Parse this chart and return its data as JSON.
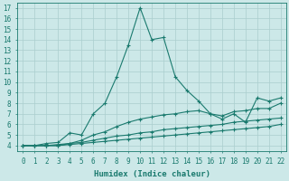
{
  "xlabel": "Humidex (Indice chaleur)",
  "ylabel": "",
  "bg_color": "#cce8e8",
  "line_color": "#1a7a6e",
  "grid_color": "#aacece",
  "ylim": [
    3.5,
    17.5
  ],
  "xlim": [
    -0.5,
    22.5
  ],
  "yticks": [
    4,
    5,
    6,
    7,
    8,
    9,
    10,
    11,
    12,
    13,
    14,
    15,
    16,
    17
  ],
  "xticks": [
    0,
    1,
    2,
    3,
    4,
    5,
    6,
    7,
    8,
    9,
    10,
    11,
    12,
    13,
    14,
    15,
    16,
    17,
    18,
    19,
    20,
    21,
    22
  ],
  "series": [
    {
      "x": [
        0,
        1,
        2,
        3,
        4,
        5,
        6,
        7,
        8,
        9,
        10,
        11,
        12,
        13,
        14,
        15,
        16,
        17,
        18,
        19,
        20,
        21,
        22
      ],
      "y": [
        4,
        4,
        4.2,
        4.3,
        5.2,
        5.0,
        7.0,
        8.0,
        10.5,
        13.5,
        17.0,
        14.0,
        14.2,
        10.5,
        9.2,
        8.2,
        7.0,
        6.5,
        7.0,
        6.2,
        8.5,
        8.2,
        8.5
      ]
    },
    {
      "x": [
        0,
        1,
        2,
        3,
        4,
        5,
        6,
        7,
        8,
        9,
        10,
        11,
        12,
        13,
        14,
        15,
        16,
        17,
        18,
        19,
        20,
        21,
        22
      ],
      "y": [
        4,
        4,
        4.0,
        4.1,
        4.2,
        4.5,
        5.0,
        5.3,
        5.8,
        6.2,
        6.5,
        6.7,
        6.9,
        7.0,
        7.2,
        7.3,
        7.0,
        6.8,
        7.2,
        7.3,
        7.5,
        7.5,
        8.0
      ]
    },
    {
      "x": [
        0,
        1,
        2,
        3,
        4,
        5,
        6,
        7,
        8,
        9,
        10,
        11,
        12,
        13,
        14,
        15,
        16,
        17,
        18,
        19,
        20,
        21,
        22
      ],
      "y": [
        4,
        4,
        4.0,
        4.0,
        4.2,
        4.3,
        4.5,
        4.7,
        4.9,
        5.0,
        5.2,
        5.3,
        5.5,
        5.6,
        5.7,
        5.8,
        5.9,
        6.0,
        6.2,
        6.3,
        6.4,
        6.5,
        6.6
      ]
    },
    {
      "x": [
        0,
        1,
        2,
        3,
        4,
        5,
        6,
        7,
        8,
        9,
        10,
        11,
        12,
        13,
        14,
        15,
        16,
        17,
        18,
        19,
        20,
        21,
        22
      ],
      "y": [
        4,
        4,
        4.0,
        4.0,
        4.1,
        4.2,
        4.3,
        4.4,
        4.5,
        4.6,
        4.7,
        4.8,
        4.9,
        5.0,
        5.1,
        5.2,
        5.3,
        5.4,
        5.5,
        5.6,
        5.7,
        5.8,
        6.0
      ]
    }
  ]
}
